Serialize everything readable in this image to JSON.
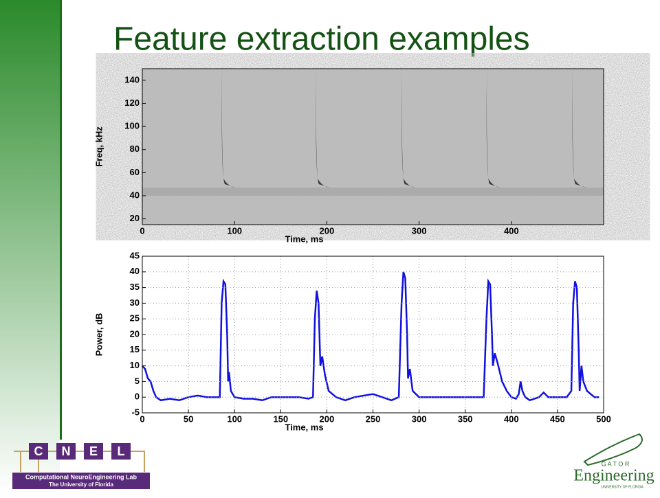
{
  "title": "Feature extraction examples",
  "chart_data": [
    {
      "type": "spectrogram",
      "xlabel": "Time, ms",
      "ylabel": "Freq, kHz",
      "xlim": [
        0,
        500
      ],
      "ylim": [
        15,
        150
      ],
      "xticks": [
        0,
        100,
        200,
        300,
        400
      ],
      "yticks": [
        20,
        40,
        60,
        80,
        100,
        120,
        140
      ],
      "x": [
        88,
        190,
        283,
        375,
        468
      ]
    },
    {
      "type": "line",
      "xlabel": "Time, ms",
      "ylabel": "Power, dB",
      "xlim": [
        0,
        500
      ],
      "ylim": [
        -5,
        45
      ],
      "xticks": [
        0,
        50,
        100,
        150,
        200,
        250,
        300,
        350,
        400,
        450,
        500
      ],
      "yticks": [
        -5,
        0,
        5,
        10,
        15,
        20,
        25,
        30,
        35,
        40,
        45
      ],
      "grid": true,
      "x": [
        0,
        3,
        6,
        9,
        12,
        15,
        20,
        30,
        40,
        50,
        60,
        70,
        80,
        84,
        86,
        88,
        90,
        92,
        93,
        94,
        96,
        100,
        110,
        120,
        130,
        140,
        150,
        160,
        170,
        180,
        185,
        187,
        189,
        191,
        193,
        195,
        198,
        202,
        210,
        220,
        230,
        240,
        250,
        260,
        270,
        278,
        281,
        283,
        285,
        287,
        288,
        290,
        293,
        300,
        320,
        340,
        360,
        370,
        373,
        375,
        377,
        379,
        380,
        382,
        385,
        390,
        395,
        400,
        405,
        408,
        410,
        412,
        415,
        420,
        430,
        435,
        440,
        450,
        460,
        465,
        467,
        469,
        471,
        473,
        474,
        476,
        478,
        482,
        490,
        495
      ],
      "series": [
        {
          "color": "#1010e0",
          "values": [
            10,
            9,
            6,
            5,
            2,
            0,
            -1,
            -0.5,
            -1,
            0,
            0.5,
            0,
            0,
            0,
            30,
            37,
            36,
            20,
            5,
            8,
            2,
            0,
            -0.5,
            -0.5,
            -1,
            0,
            0,
            0,
            0,
            -0.5,
            0,
            25,
            34,
            30,
            10,
            13,
            7,
            2,
            0,
            -1,
            0,
            0.5,
            1,
            0,
            -1,
            0,
            30,
            40,
            38,
            20,
            6,
            9,
            2,
            0,
            0,
            0,
            0,
            0,
            25,
            37,
            36,
            20,
            10,
            14,
            11,
            5,
            2,
            0,
            -0.5,
            1,
            5,
            2,
            0,
            -1,
            0,
            1.5,
            0,
            0,
            0,
            2,
            30,
            37,
            35,
            15,
            2,
            10,
            5,
            2,
            0,
            0
          ]
        }
      ]
    }
  ],
  "logos": {
    "cnel": [
      "C",
      "N",
      "E",
      "L"
    ],
    "cnel_name": "Computational NeuroEngineering Lab",
    "cnel_univ": "The University of Florida",
    "gator": "G A T O R",
    "engineering": "Engineering",
    "uf": "UNIVERSITY OF FLORIDA"
  }
}
